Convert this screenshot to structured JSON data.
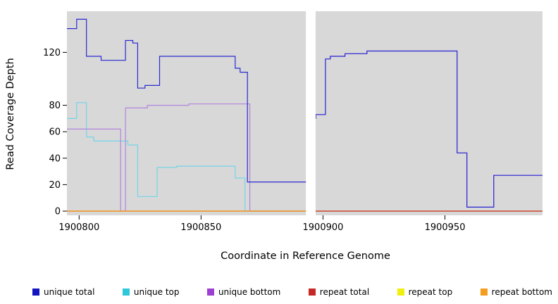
{
  "chart_data": {
    "type": "line",
    "step": true,
    "title": "",
    "xlabel": "Coordinate in Reference Genome",
    "ylabel": "Read Coverage Depth",
    "xlim": [
      1900795,
      1900990
    ],
    "ylim": [
      0,
      150
    ],
    "xticks": [
      1900800,
      1900850,
      1900900,
      1900950
    ],
    "yticks": [
      0,
      20,
      40,
      60,
      80,
      120
    ],
    "plot_bg": "#d8d8d8",
    "gap_region": [
      1900893,
      1900897
    ],
    "legend": [
      {
        "label": "unique total",
        "color": "#1515c0"
      },
      {
        "label": "unique top",
        "color": "#2ec8da"
      },
      {
        "label": "unique bottom",
        "color": "#9d3fd0"
      },
      {
        "label": "repeat total",
        "color": "#c62828"
      },
      {
        "label": "repeat top",
        "color": "#f0ef10"
      },
      {
        "label": "repeat bottom",
        "color": "#f59d20"
      }
    ],
    "series": [
      {
        "name": "unique top",
        "color": "#74d4e8",
        "steps": [
          [
            1900795,
            70
          ],
          [
            1900799,
            82
          ],
          [
            1900803,
            56
          ],
          [
            1900806,
            53
          ],
          [
            1900820,
            50
          ],
          [
            1900824,
            11
          ],
          [
            1900832,
            33
          ],
          [
            1900840,
            34
          ],
          [
            1900864,
            25
          ],
          [
            1900868,
            0
          ],
          [
            1900893,
            0
          ]
        ]
      },
      {
        "name": "unique bottom",
        "color": "#b284de",
        "steps": [
          [
            1900795,
            62
          ],
          [
            1900817,
            0
          ],
          [
            1900819,
            78
          ],
          [
            1900828,
            80
          ],
          [
            1900845,
            81
          ],
          [
            1900870,
            0
          ],
          [
            1900895,
            70
          ],
          [
            1900897,
            73
          ],
          [
            1900901,
            115
          ],
          [
            1900903,
            117
          ],
          [
            1900909,
            119
          ],
          [
            1900918,
            121
          ],
          [
            1900955,
            44
          ],
          [
            1900959,
            3
          ],
          [
            1900970,
            27
          ],
          [
            1900990,
            27
          ]
        ]
      },
      {
        "name": "repeat top",
        "color": "#f0ef10",
        "steps": [
          [
            1900795,
            0
          ],
          [
            1900990,
            0
          ]
        ]
      },
      {
        "name": "repeat total",
        "color": "#c62828",
        "steps": [
          [
            1900795,
            0
          ],
          [
            1900990,
            0
          ]
        ]
      },
      {
        "name": "repeat bottom",
        "color": "#f59d20",
        "steps": [
          [
            1900795,
            0
          ],
          [
            1900893,
            0
          ]
        ]
      },
      {
        "name": "unique total",
        "color": "#2a2ad0",
        "steps": [
          [
            1900795,
            138
          ],
          [
            1900799,
            145
          ],
          [
            1900803,
            117
          ],
          [
            1900809,
            114
          ],
          [
            1900819,
            129
          ],
          [
            1900822,
            127
          ],
          [
            1900824,
            93
          ],
          [
            1900827,
            95
          ],
          [
            1900833,
            117
          ],
          [
            1900864,
            108
          ],
          [
            1900866,
            105
          ],
          [
            1900869,
            22
          ],
          [
            1900895,
            70
          ],
          [
            1900897,
            73
          ],
          [
            1900901,
            115
          ],
          [
            1900903,
            117
          ],
          [
            1900909,
            119
          ],
          [
            1900918,
            121
          ],
          [
            1900955,
            44
          ],
          [
            1900959,
            3
          ],
          [
            1900970,
            27
          ],
          [
            1900990,
            27
          ]
        ]
      }
    ]
  }
}
